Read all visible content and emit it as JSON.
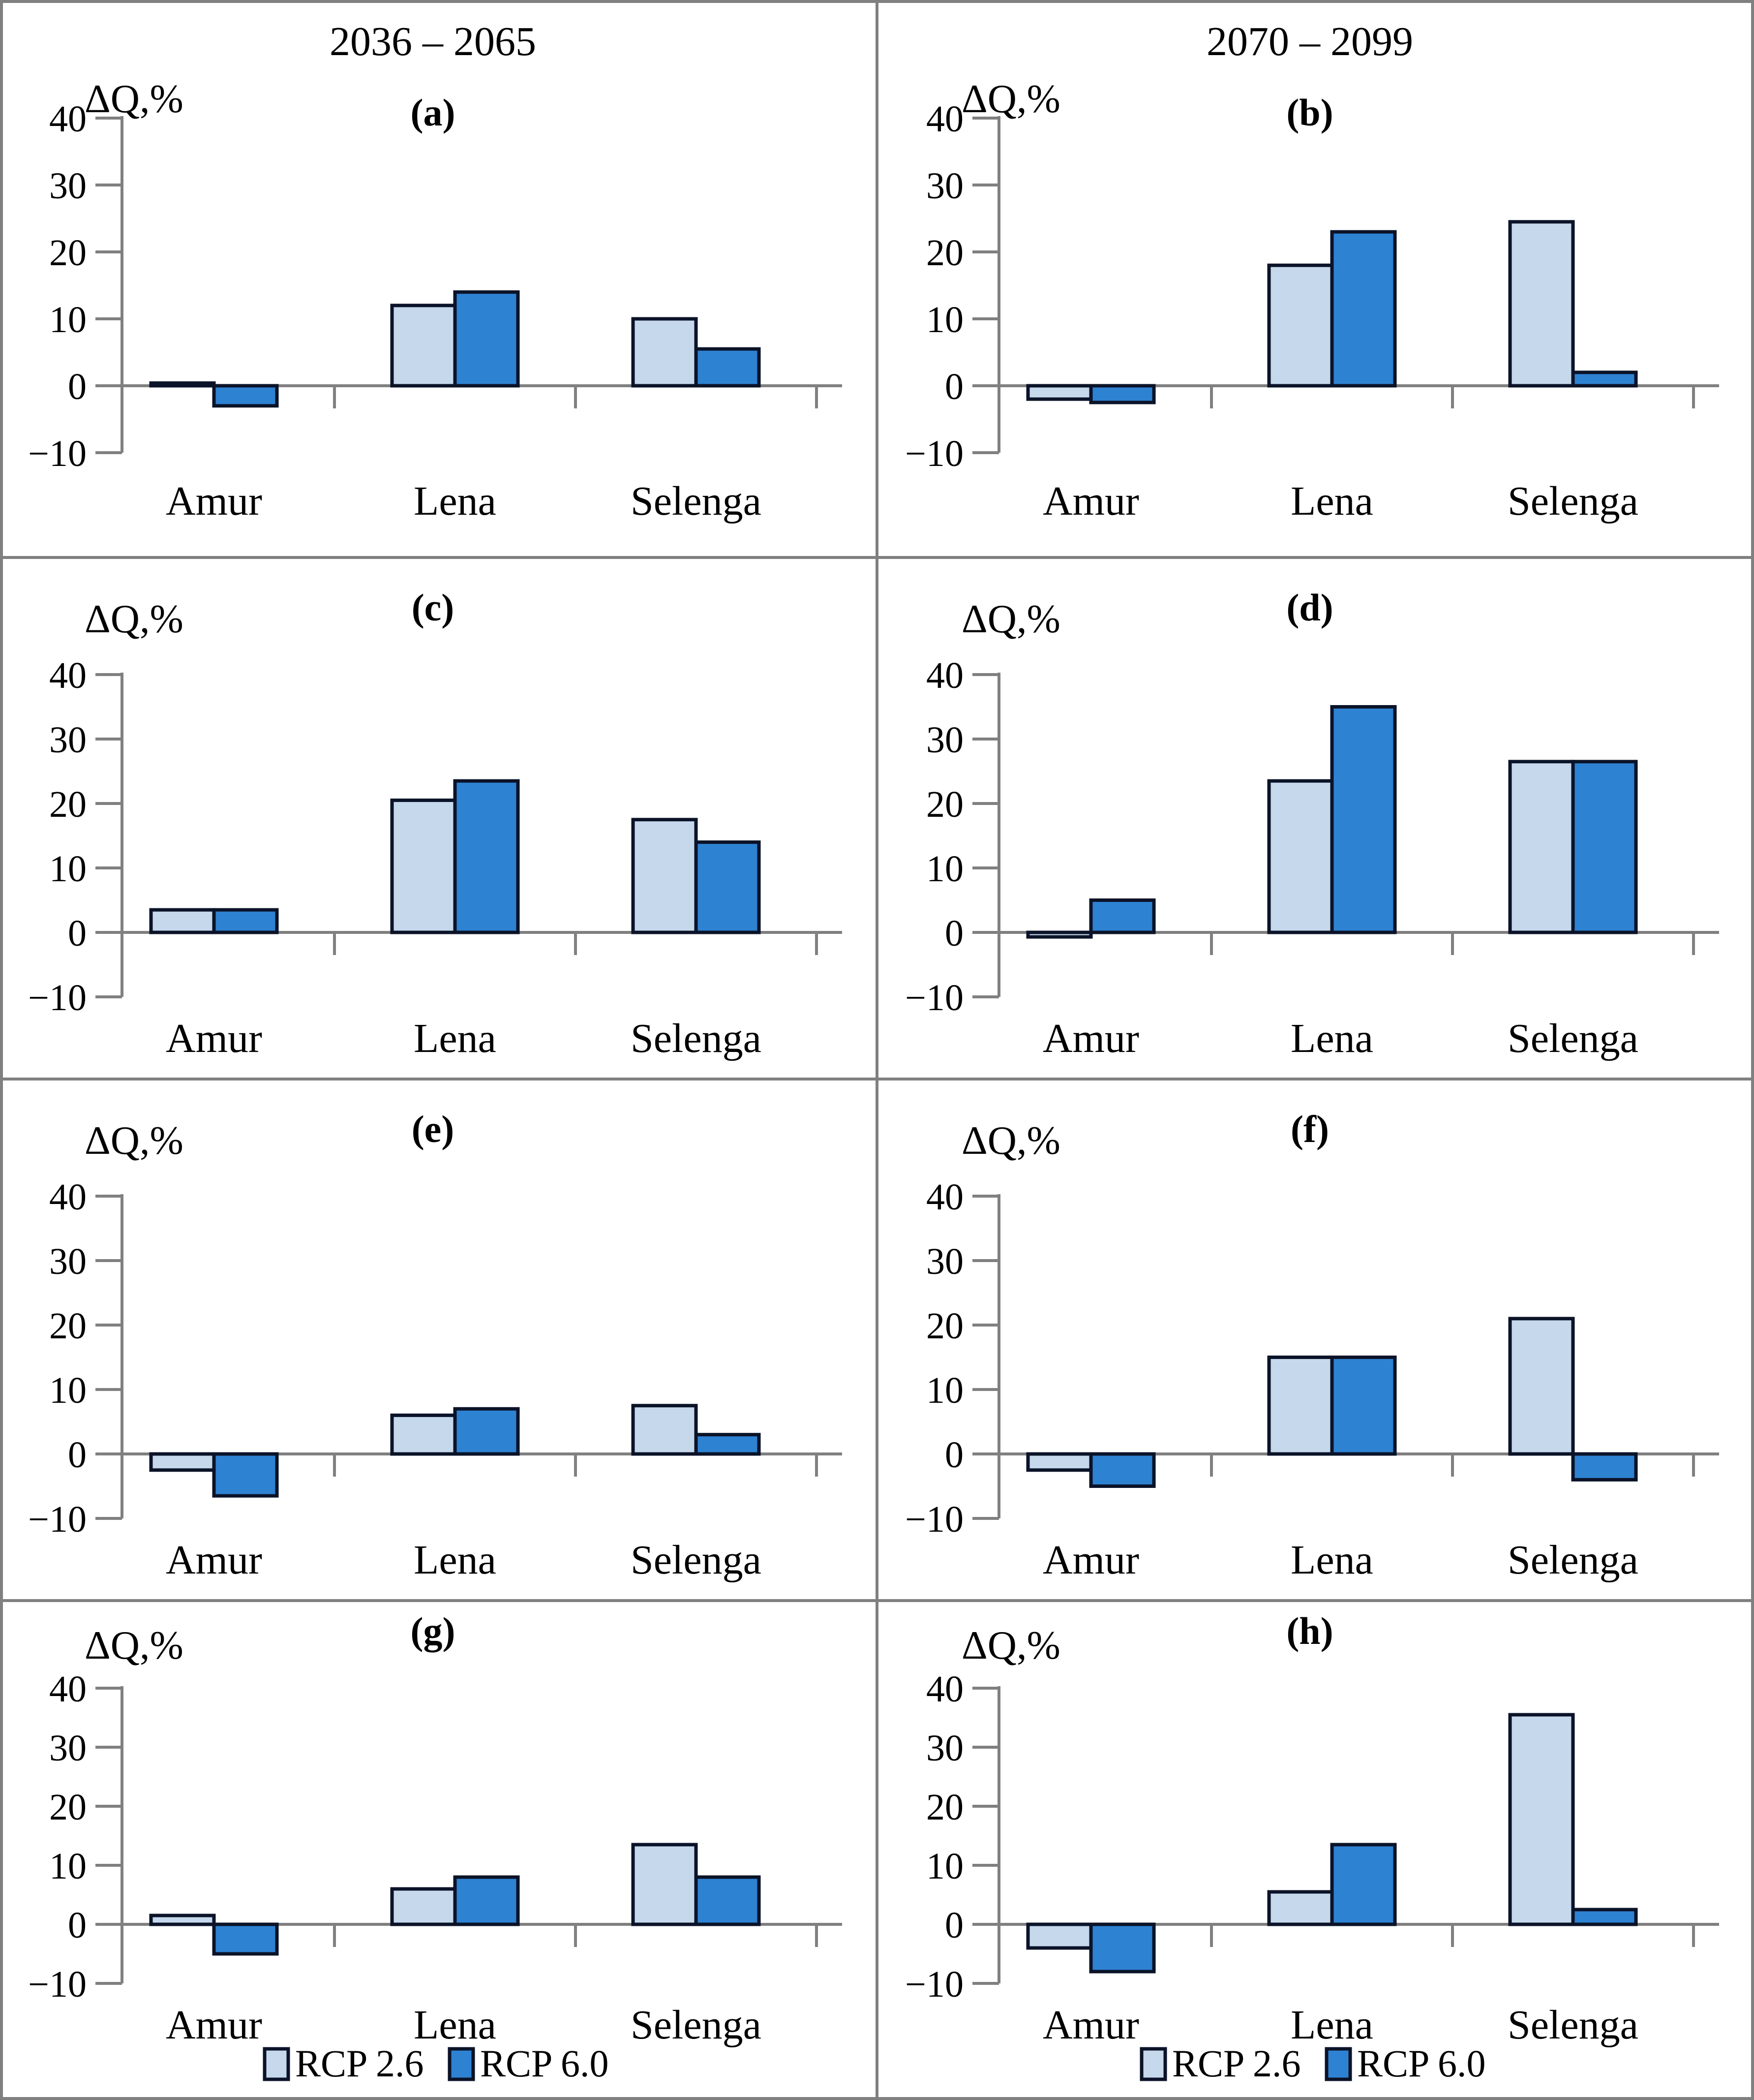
{
  "figure": {
    "y_axis_label": "ΔQ,%",
    "column_titles": [
      "2036 – 2065",
      "2070 – 2099"
    ],
    "categories": [
      "Amur",
      "Lena",
      "Selenga"
    ],
    "y_ticks": [
      40,
      30,
      20,
      10,
      0,
      -10
    ],
    "ylim": [
      -10,
      40
    ],
    "legend": {
      "items": [
        {
          "label": "RCP 2.6",
          "color_key": "light"
        },
        {
          "label": "RCP 6.0",
          "color_key": "dark"
        }
      ]
    },
    "colors": {
      "light": "#c5d8ec",
      "dark": "#2e82d2",
      "bar_border": "#0b1328",
      "axis": "#808080",
      "frame": "#808080",
      "text": "#000000"
    }
  },
  "chart_data": [
    {
      "type": "bar",
      "panel": "(a)",
      "column_title": "2036 – 2065",
      "ylabel": "ΔQ,%",
      "ylim": [
        -10,
        40
      ],
      "yticks": [
        40,
        30,
        20,
        10,
        0,
        -10
      ],
      "legend_position": "none",
      "grid": false,
      "categories": [
        "Amur",
        "Lena",
        "Selenga"
      ],
      "series": [
        {
          "name": "RCP 2.6",
          "values": [
            0.4,
            12,
            10
          ]
        },
        {
          "name": "RCP 6.0",
          "values": [
            -3,
            14,
            5.5
          ]
        }
      ]
    },
    {
      "type": "bar",
      "panel": "(b)",
      "column_title": "2070 – 2099",
      "ylabel": "ΔQ,%",
      "ylim": [
        -10,
        40
      ],
      "yticks": [
        40,
        30,
        20,
        10,
        0,
        -10
      ],
      "legend_position": "none",
      "grid": false,
      "categories": [
        "Amur",
        "Lena",
        "Selenga"
      ],
      "series": [
        {
          "name": "RCP 2.6",
          "values": [
            -2,
            18,
            24.5
          ]
        },
        {
          "name": "RCP 6.0",
          "values": [
            -2.5,
            23,
            2
          ]
        }
      ]
    },
    {
      "type": "bar",
      "panel": "(c)",
      "column_title": "",
      "ylabel": "ΔQ,%",
      "ylim": [
        -10,
        40
      ],
      "yticks": [
        40,
        30,
        20,
        10,
        0,
        -10
      ],
      "legend_position": "none",
      "grid": false,
      "categories": [
        "Amur",
        "Lena",
        "Selenga"
      ],
      "series": [
        {
          "name": "RCP 2.6",
          "values": [
            3.5,
            20.5,
            17.5
          ]
        },
        {
          "name": "RCP 6.0",
          "values": [
            3.5,
            23.5,
            14
          ]
        }
      ]
    },
    {
      "type": "bar",
      "panel": "(d)",
      "column_title": "",
      "ylabel": "ΔQ,%",
      "ylim": [
        -10,
        40
      ],
      "yticks": [
        40,
        30,
        20,
        10,
        0,
        -10
      ],
      "legend_position": "none",
      "grid": false,
      "categories": [
        "Amur",
        "Lena",
        "Selenga"
      ],
      "series": [
        {
          "name": "RCP 2.6",
          "values": [
            -0.7,
            23.5,
            26.5
          ]
        },
        {
          "name": "RCP 6.0",
          "values": [
            5,
            35,
            26.5
          ]
        }
      ]
    },
    {
      "type": "bar",
      "panel": "(e)",
      "column_title": "",
      "ylabel": "ΔQ,%",
      "ylim": [
        -10,
        40
      ],
      "yticks": [
        40,
        30,
        20,
        10,
        0,
        -10
      ],
      "legend_position": "none",
      "grid": false,
      "categories": [
        "Amur",
        "Lena",
        "Selenga"
      ],
      "series": [
        {
          "name": "RCP 2.6",
          "values": [
            -2.5,
            6,
            7.5
          ]
        },
        {
          "name": "RCP 6.0",
          "values": [
            -6.5,
            7,
            3
          ]
        }
      ]
    },
    {
      "type": "bar",
      "panel": "(f)",
      "column_title": "",
      "ylabel": "ΔQ,%",
      "ylim": [
        -10,
        40
      ],
      "yticks": [
        40,
        30,
        20,
        10,
        0,
        -10
      ],
      "legend_position": "none",
      "grid": false,
      "categories": [
        "Amur",
        "Lena",
        "Selenga"
      ],
      "series": [
        {
          "name": "RCP 2.6",
          "values": [
            -2.5,
            15,
            21
          ]
        },
        {
          "name": "RCP 6.0",
          "values": [
            -5,
            15,
            -4
          ]
        }
      ]
    },
    {
      "type": "bar",
      "panel": "(g)",
      "column_title": "",
      "ylabel": "ΔQ,%",
      "ylim": [
        -10,
        40
      ],
      "yticks": [
        40,
        30,
        20,
        10,
        0,
        -10
      ],
      "legend_position": "bottom",
      "grid": false,
      "categories": [
        "Amur",
        "Lena",
        "Selenga"
      ],
      "series": [
        {
          "name": "RCP 2.6",
          "values": [
            1.5,
            6,
            13.5
          ]
        },
        {
          "name": "RCP 6.0",
          "values": [
            -5,
            8,
            8
          ]
        }
      ]
    },
    {
      "type": "bar",
      "panel": "(h)",
      "column_title": "",
      "ylabel": "ΔQ,%",
      "ylim": [
        -10,
        40
      ],
      "yticks": [
        40,
        30,
        20,
        10,
        0,
        -10
      ],
      "legend_position": "bottom",
      "grid": false,
      "categories": [
        "Amur",
        "Lena",
        "Selenga"
      ],
      "series": [
        {
          "name": "RCP 2.6",
          "values": [
            -4,
            5.5,
            35.5
          ]
        },
        {
          "name": "RCP 6.0",
          "values": [
            -8,
            13.5,
            2.5
          ]
        }
      ]
    }
  ]
}
